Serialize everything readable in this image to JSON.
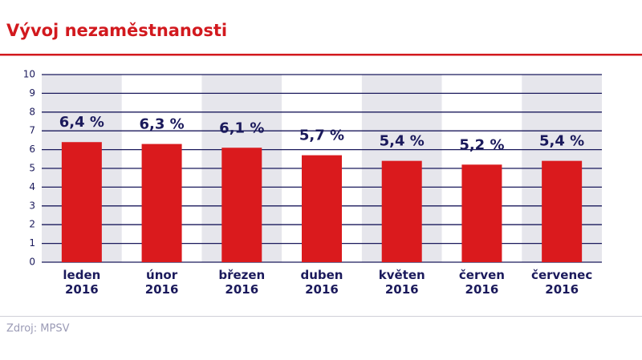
{
  "chart_data": {
    "type": "bar",
    "title": "Vývoj nezaměstnanosti",
    "categories": [
      "leden\n2016",
      "únor\n2016",
      "březen\n2016",
      "duben\n2016",
      "květen\n2016",
      "červen\n2016",
      "červenec\n2016"
    ],
    "values": [
      6.4,
      6.3,
      6.1,
      5.7,
      5.4,
      5.2,
      5.4
    ],
    "value_labels": [
      "6,4 %",
      "6,3 %",
      "6,1 %",
      "5,7 %",
      "5,4 %",
      "5,2 %",
      "5,4 %"
    ],
    "color": "#da1a1d",
    "ylim": [
      0,
      10
    ],
    "yticks": [
      0,
      1,
      2,
      3,
      4,
      5,
      6,
      7,
      8,
      9,
      10
    ],
    "grid": true,
    "source": "Zdroj: MPSV"
  }
}
